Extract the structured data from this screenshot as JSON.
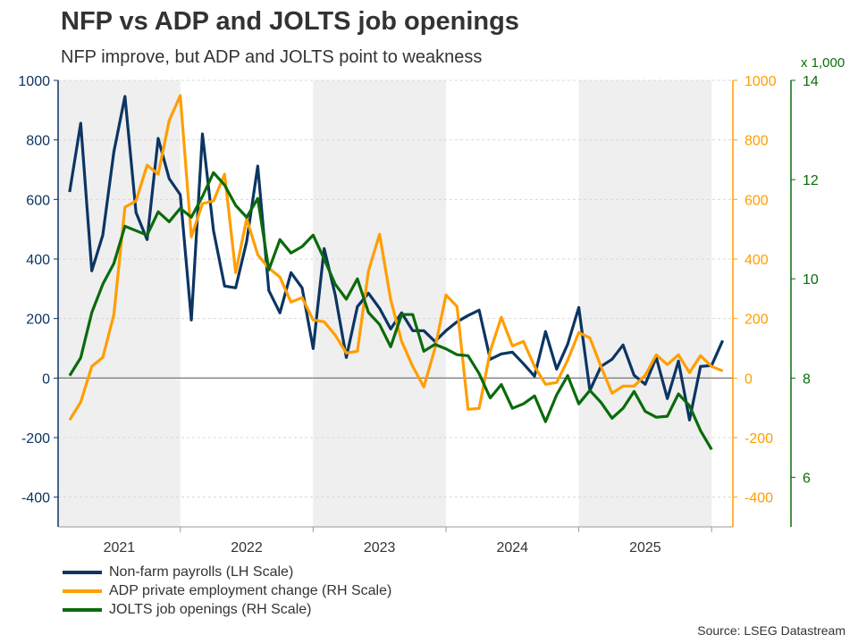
{
  "chart_data": {
    "type": "line",
    "title": "NFP vs ADP and JOLTS job openings",
    "subtitle": "NFP improve, but ADP and JOLTS point to weakness",
    "source": "Source: LSEG Datastream",
    "start_month": "2021-03",
    "x_ticks": [
      "2021",
      "2022",
      "2023",
      "2024",
      "2025"
    ],
    "shaded_years": [
      "2021",
      "2023",
      "2025"
    ],
    "left_axis": {
      "range": [
        -500,
        1000
      ],
      "ticks": [
        -400,
        -200,
        0,
        200,
        400,
        600,
        800,
        1000
      ],
      "color": "#0b3563"
    },
    "right_axis_adp": {
      "range": [
        -500,
        1000
      ],
      "ticks": [
        -400,
        -200,
        0,
        200,
        400,
        600,
        800,
        1000
      ],
      "color": "#ff9e00"
    },
    "right_axis_jolts": {
      "range": [
        5,
        14
      ],
      "ticks": [
        6,
        8,
        10,
        12,
        14
      ],
      "unit": "x 1,000",
      "color": "#0a6b0a"
    },
    "series": [
      {
        "name": "Non-farm payrolls (LH Scale)",
        "axis": "left",
        "color": "#0b3563",
        "values": [
          625,
          856,
          360,
          480,
          760,
          946,
          556,
          465,
          805,
          670,
          616,
          195,
          820,
          495,
          309,
          303,
          459,
          712,
          294,
          219,
          354,
          303,
          99,
          435,
          279,
          69,
          240,
          285,
          234,
          165,
          219,
          159,
          159,
          123,
          159,
          189,
          210,
          228,
          63,
          81,
          87,
          48,
          6,
          156,
          30,
          114,
          237,
          -42,
          39,
          63,
          111,
          9,
          -21,
          69,
          -69,
          57,
          -141,
          39,
          42,
          126
        ]
      },
      {
        "name": "ADP private employment change (RH Scale)",
        "axis": "right_adp",
        "color": "#ff9e00",
        "values": [
          -141,
          -81,
          39,
          69,
          213,
          574,
          595,
          715,
          685,
          865,
          949,
          474,
          586,
          595,
          685,
          354,
          535,
          414,
          369,
          339,
          255,
          270,
          195,
          189,
          144,
          84,
          90,
          360,
          483,
          264,
          123,
          39,
          -30,
          99,
          279,
          240,
          -105,
          -102,
          90,
          204,
          108,
          123,
          39,
          -21,
          -15,
          60,
          153,
          135,
          39,
          -51,
          -27,
          -27,
          9,
          78,
          45,
          78,
          18,
          75,
          39,
          24
        ]
      },
      {
        "name": "JOLTS job openings (RH Scale)",
        "axis": "right_jolts",
        "color": "#0a6b0a",
        "values": [
          8.05,
          8.41,
          9.32,
          9.89,
          10.31,
          11.06,
          10.97,
          10.88,
          11.35,
          11.15,
          11.42,
          11.24,
          11.66,
          12.14,
          11.89,
          11.48,
          11.24,
          11.62,
          10.18,
          10.79,
          10.52,
          10.65,
          10.88,
          10.4,
          9.89,
          9.59,
          10.0,
          9.32,
          9.08,
          8.63,
          9.28,
          9.28,
          8.54,
          8.68,
          8.59,
          8.47,
          8.45,
          8.09,
          7.6,
          7.87,
          7.39,
          7.48,
          7.64,
          7.12,
          7.66,
          8.05,
          7.48,
          7.75,
          7.51,
          7.19,
          7.39,
          7.73,
          7.33,
          7.21,
          7.23,
          7.68,
          7.44,
          6.94,
          6.56
        ]
      }
    ],
    "grid": true,
    "legend_placement": "bottom-left"
  }
}
